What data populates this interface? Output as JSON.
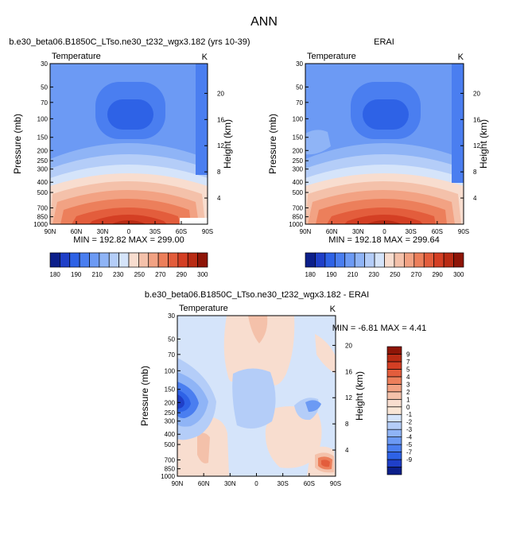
{
  "figure": {
    "title": "ANN"
  },
  "colors": {
    "abs_scale": [
      "#0c1f8a",
      "#1f3fc8",
      "#2e62e6",
      "#4a7ef0",
      "#6c9af4",
      "#8fb4f6",
      "#b4cdf8",
      "#d5e4fa",
      "#f8ddcf",
      "#f4c1aa",
      "#f2a283",
      "#ec7f5b",
      "#e35d3c",
      "#d43f24",
      "#b92b14",
      "#8e1507"
    ],
    "diff_scale": [
      "#0c1f8a",
      "#1f3fc8",
      "#2e62e6",
      "#4a7ef0",
      "#6c9af4",
      "#8fb4f6",
      "#b4cdf8",
      "#d5e4fa",
      "#fae6d6",
      "#f8ddcf",
      "#f4c1aa",
      "#f2a283",
      "#ec7f5b",
      "#e35d3c",
      "#d43f24",
      "#b92b14",
      "#8e1507"
    ]
  },
  "chart_data": [
    {
      "type": "heatmap",
      "title": "b.e30_beta06.B1850C_LTso.ne30_t232_wgx3.182 (yrs 10-39)",
      "left_label": "Temperature",
      "right_label": "K",
      "xlabel": "",
      "ylabel": "Pressure (mb)",
      "ylabel_right": "Height (km)",
      "x_ticks": [
        "90N",
        "60N",
        "30N",
        "0",
        "30S",
        "60S",
        "90S"
      ],
      "y_ticks": [
        "30",
        "50",
        "70",
        "100",
        "150",
        "200",
        "250",
        "300",
        "400",
        "500",
        "700",
        "850",
        "1000"
      ],
      "height_ticks": [
        "4",
        "8",
        "12",
        "16",
        "20"
      ],
      "stats": "MIN = 192.82   MAX = 299.00",
      "colorbar_labels": [
        "180",
        "190",
        "210",
        "230",
        "250",
        "270",
        "290",
        "300"
      ]
    },
    {
      "type": "heatmap",
      "title": "ERAI",
      "left_label": "Temperature",
      "right_label": "K",
      "xlabel": "",
      "ylabel": "Pressure (mb)",
      "ylabel_right": "Height (km)",
      "x_ticks": [
        "90N",
        "60N",
        "30N",
        "0",
        "30S",
        "60S",
        "90S"
      ],
      "y_ticks": [
        "30",
        "50",
        "70",
        "100",
        "150",
        "200",
        "250",
        "300",
        "400",
        "500",
        "700",
        "850",
        "1000"
      ],
      "height_ticks": [
        "4",
        "8",
        "12",
        "16",
        "20"
      ],
      "stats": "MIN = 192.18   MAX = 299.64",
      "colorbar_labels": [
        "180",
        "190",
        "210",
        "230",
        "250",
        "270",
        "290",
        "300"
      ]
    },
    {
      "type": "heatmap",
      "title": "b.e30_beta06.B1850C_LTso.ne30_t232_wgx3.182 - ERAI",
      "left_label": "Temperature",
      "right_label": "K",
      "xlabel": "",
      "ylabel": "Pressure (mb)",
      "ylabel_right": "Height (km)",
      "x_ticks": [
        "90N",
        "60N",
        "30N",
        "0",
        "30S",
        "60S",
        "90S"
      ],
      "y_ticks": [
        "30",
        "50",
        "70",
        "100",
        "150",
        "200",
        "250",
        "300",
        "400",
        "500",
        "700",
        "850",
        "1000"
      ],
      "height_ticks": [
        "4",
        "8",
        "12",
        "16",
        "20"
      ],
      "stats": "MIN =  -6.81   MAX =   4.41",
      "colorbar_labels": [
        "9",
        "7",
        "5",
        "4",
        "3",
        "2",
        "1",
        "0",
        "-1",
        "-2",
        "-3",
        "-4",
        "-5",
        "-7",
        "-9"
      ]
    }
  ]
}
